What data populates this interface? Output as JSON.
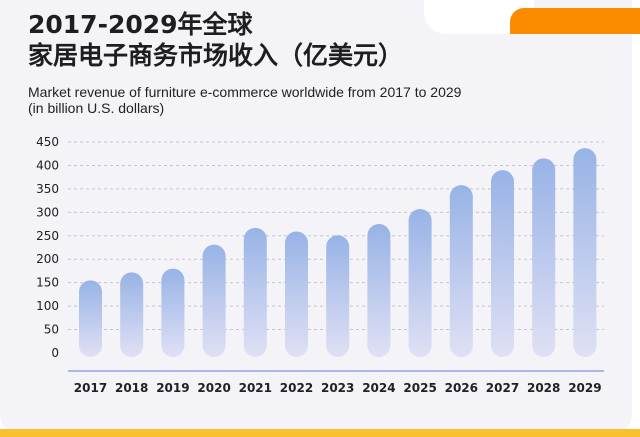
{
  "header": {
    "title_line1": "2017-2029年全球",
    "title_line2": "家居电子商务市场收入（亿美元）",
    "subtitle_line1": "Market revenue of furniture e-commerce worldwide from 2017 to 2029",
    "subtitle_line2": "(in billion U.S. dollars)"
  },
  "colors": {
    "bar_top": "#97b3e6",
    "bar_bottom": "#e0e0f4",
    "accent_orange": "#fb8c00",
    "accent_yellow": "#fbc02d",
    "baseline": "#8fa8e0"
  },
  "chart_data": {
    "type": "bar",
    "categories": [
      "2017",
      "2018",
      "2019",
      "2020",
      "2021",
      "2022",
      "2023",
      "2024",
      "2025",
      "2026",
      "2027",
      "2028",
      "2029"
    ],
    "values": [
      155,
      172,
      180,
      231,
      267,
      259,
      251,
      275,
      307,
      358,
      390,
      415,
      437
    ],
    "y_ticks": [
      0,
      50,
      100,
      150,
      200,
      250,
      300,
      350,
      400,
      450
    ],
    "ylim": [
      0,
      450
    ],
    "grid": true,
    "legend": "none"
  }
}
